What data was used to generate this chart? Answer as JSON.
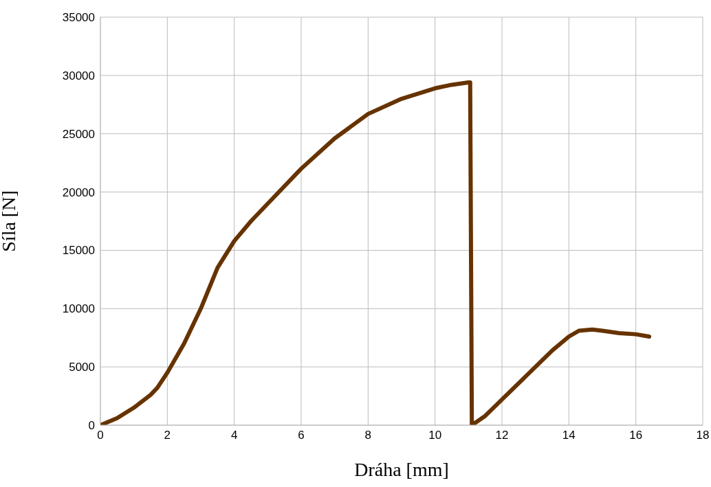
{
  "chart_data": {
    "type": "line",
    "xlabel": "Dráha [mm]",
    "ylabel": "Síla [N]",
    "x": [
      0,
      0.5,
      1,
      1.5,
      1.7,
      2,
      2.5,
      3,
      3.5,
      4,
      4.5,
      5,
      6,
      7,
      8,
      9,
      10,
      10.5,
      11,
      11.05,
      11.1,
      11.5,
      12,
      12.5,
      13,
      13.5,
      14,
      14.3,
      14.7,
      15,
      15.5,
      16,
      16.4
    ],
    "series": [
      {
        "color": "#663300",
        "values": [
          0,
          600,
          1500,
          2600,
          3200,
          4500,
          7000,
          10000,
          13500,
          15800,
          17500,
          19000,
          22000,
          24600,
          26700,
          28000,
          28900,
          29200,
          29400,
          29400,
          0,
          800,
          2200,
          3600,
          5000,
          6400,
          7600,
          8100,
          8200,
          8100,
          7900,
          7800,
          7600
        ]
      }
    ],
    "xlim": [
      0,
      18
    ],
    "xticks": [
      0,
      2,
      4,
      6,
      8,
      10,
      12,
      14,
      16,
      18
    ],
    "ylim": [
      0,
      35000
    ],
    "yticks": [
      0,
      5000,
      10000,
      15000,
      20000,
      25000,
      30000,
      35000
    ],
    "grid": true,
    "legend": false,
    "marker": "none",
    "line_style": "solid"
  }
}
